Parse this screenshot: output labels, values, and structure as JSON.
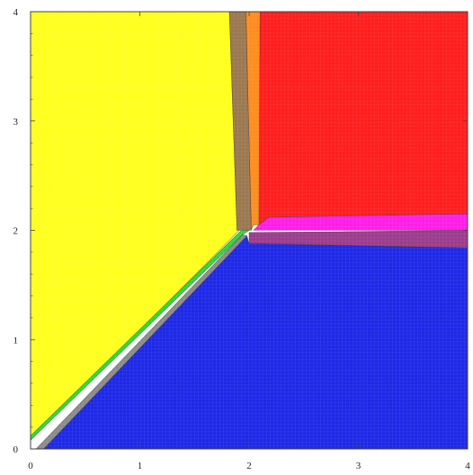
{
  "chart_data": {
    "type": "area",
    "title": "",
    "xlabel": "",
    "ylabel": "",
    "xlim": [
      0,
      4
    ],
    "ylim": [
      0,
      4
    ],
    "x_ticks": [
      0,
      1,
      2,
      3,
      4
    ],
    "y_ticks": [
      0,
      1,
      2,
      3,
      4
    ],
    "x_tick_labels": [
      "0",
      "1",
      "2",
      "3",
      "4"
    ],
    "y_tick_labels": [
      "0",
      "1",
      "2",
      "3",
      "4"
    ],
    "grid": false,
    "regions": [
      {
        "id": "yellow",
        "color": "#ffff1e",
        "polygon": [
          [
            0,
            0.08
          ],
          [
            0,
            4
          ],
          [
            1.82,
            4
          ],
          [
            1.89,
            2.0
          ],
          [
            1.91,
            2.0
          ]
        ]
      },
      {
        "id": "blue",
        "color": "#1e28e6",
        "polygon": [
          [
            0.12,
            0
          ],
          [
            4,
            0
          ],
          [
            4,
            1.84
          ],
          [
            2.0,
            1.88
          ],
          [
            1.98,
            1.95
          ]
        ]
      },
      {
        "id": "red",
        "color": "#ff1e1e",
        "polygon": [
          [
            2.1,
            4
          ],
          [
            4,
            4
          ],
          [
            4,
            2.15
          ],
          [
            2.18,
            2.12
          ],
          [
            2.09,
            2.05
          ]
        ]
      },
      {
        "id": "orange",
        "color": "#ff8c1e",
        "polygon": [
          [
            1.97,
            4
          ],
          [
            2.1,
            4
          ],
          [
            2.09,
            2.05
          ],
          [
            2.04,
            2.05
          ],
          [
            2.02,
            2.0
          ]
        ]
      },
      {
        "id": "brown",
        "color": "#9b7850",
        "polygon": [
          [
            1.82,
            4
          ],
          [
            1.97,
            4
          ],
          [
            2.02,
            2.0
          ],
          [
            2.0,
            2.0
          ],
          [
            1.89,
            2.0
          ]
        ]
      },
      {
        "id": "magenta",
        "color": "#ff1ee6",
        "polygon": [
          [
            2.09,
            2.05
          ],
          [
            2.18,
            2.12
          ],
          [
            4,
            2.15
          ],
          [
            4,
            2.0
          ],
          [
            2.04,
            2.0
          ]
        ]
      },
      {
        "id": "purple",
        "color": "#9b3c8c",
        "polygon": [
          [
            2.0,
            1.98
          ],
          [
            4,
            2.0
          ],
          [
            4,
            1.84
          ],
          [
            2.0,
            1.88
          ]
        ]
      },
      {
        "id": "green",
        "color": "#28dc32",
        "polygon": [
          [
            0,
            0.08
          ],
          [
            0,
            0.12
          ],
          [
            1.93,
            2.0
          ],
          [
            2.0,
            2.0
          ],
          [
            1.94,
            1.96
          ]
        ]
      },
      {
        "id": "gray",
        "color": "#8c8c8c",
        "polygon": [
          [
            0.05,
            0
          ],
          [
            0.12,
            0
          ],
          [
            1.98,
            1.95
          ],
          [
            1.94,
            1.96
          ]
        ]
      }
    ]
  }
}
